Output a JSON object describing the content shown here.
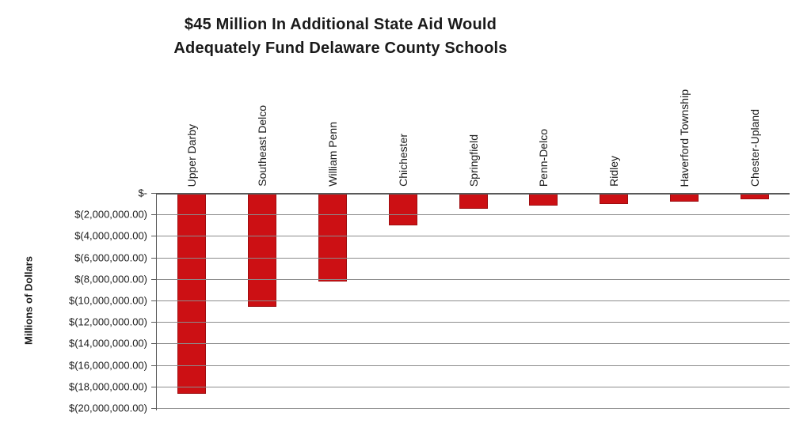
{
  "title": {
    "line1": "$45 Million In Additional State Aid Would",
    "line2": "Adequately Fund Delaware County Schools"
  },
  "chart_data": {
    "type": "bar",
    "title": "$45 Million In Additional State Aid Would Adequately Fund Delaware County Schools",
    "xlabel": "",
    "ylabel": "Millions of Dollars",
    "categories": [
      "Upper Darby",
      "Southeast Delco",
      "William Penn",
      "Chichester",
      "Springfield",
      "Penn-Delco",
      "Ridley",
      "Haverford Township",
      "Chester-Upland"
    ],
    "values": [
      -18700000,
      -10600000,
      -8200000,
      -3000000,
      -1500000,
      -1200000,
      -1000000,
      -800000,
      -600000
    ],
    "ylim": [
      -20000000,
      0
    ],
    "ytick_step": 2000000,
    "ytick_labels": [
      "$-",
      "$(2,000,000.00)",
      "$(4,000,000.00)",
      "$(6,000,000.00)",
      "$(8,000,000.00)",
      "$(10,000,000.00)",
      "$(12,000,000.00)",
      "$(14,000,000.00)",
      "$(16,000,000.00)",
      "$(18,000,000.00)",
      "$(20,000,000.00)"
    ],
    "grid": true,
    "legend": false,
    "bar_color": "#cc1014",
    "gridline_color": "#8c8c8c",
    "axis_color": "#595959"
  }
}
